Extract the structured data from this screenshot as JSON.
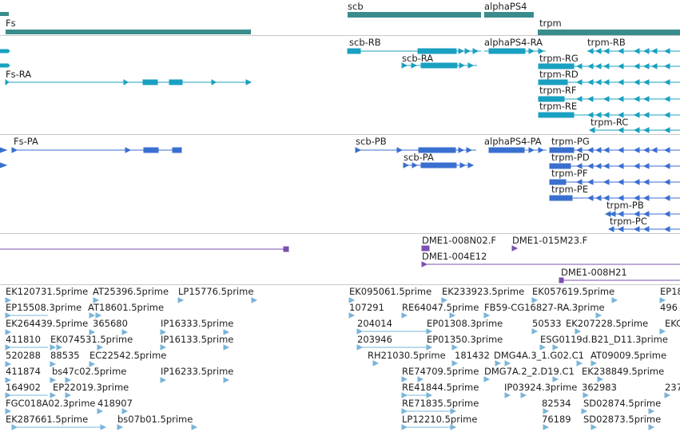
{
  "colors": {
    "gene": "#3a8c8c",
    "transcript": "#1aa0c0",
    "protein": "#3a6fd0",
    "clone": "#7a50b0",
    "est": "#7ab4d8",
    "divider": "#c8c8c8"
  },
  "genes": [
    {
      "name": "Fs",
      "icon": "gene-bar"
    },
    {
      "name": "scb",
      "icon": "gene-arrow-right"
    },
    {
      "name": "alphaPS4",
      "icon": "gene-arrow-right"
    },
    {
      "name": "trpm",
      "icon": "gene-bar"
    }
  ],
  "transcripts": [
    "Fs-RA",
    "scb-RB",
    "scb-RA",
    "alphaPS4-RA",
    "trpm-RB",
    "trpm-RG",
    "trpm-RD",
    "trpm-RF",
    "trpm-RE",
    "trpm-RC"
  ],
  "proteins": [
    "Fs-PA",
    "scb-PB",
    "scb-PA",
    "alphaPS4-PA",
    "trpm-PG",
    "trpm-PD",
    "trpm-PF",
    "trpm-PE",
    "trpm-PB",
    "trpm-PC"
  ],
  "clones": [
    "DME1-008N02.F",
    "DME1-015M23.F",
    "DME1-004E12",
    "DME1-008H21"
  ],
  "ests": [
    "EK120731.5prime",
    "AT25396.5prime",
    "LP15776.5prime",
    "EP15508.3prime",
    "AT18601.5prime",
    "EK264439.5prime",
    "365680",
    "411810",
    "EK074531.5prime",
    "IP16333.5prime",
    "IP16133.5prime",
    "520288",
    "88535",
    "EC22542.5prime",
    "411874",
    "bs47c02.5prime",
    "IP16233.5prime",
    "164902",
    "EP22019.3prime",
    "FGC018A02.3prime",
    "418907",
    "EK287661.5prime",
    "bs07b01.5prime",
    "EK095061.5prime",
    "EK233923.5prime",
    "EK057619.5prime",
    "EP18",
    "107291",
    "RE64047.5prime",
    "FB59-CG16827-RA.3prime",
    "496",
    "204014",
    "EP01308.3prime",
    "50533",
    "EK207228.5prime",
    "EKC",
    "203946",
    "EP01350.3prime",
    "ESG0119d.B21_D11.3prime",
    "RH21030.5prime",
    "181432",
    "DMG4A.3_1.G02.C1",
    "AT09009.5prime",
    "RE74709.5prime",
    "DMG7A.2_2.D19.C1",
    "EK238849.5prime",
    "RE41844.5prime",
    "IP03924.3prime",
    "362983",
    "237",
    "RE71835.5prime",
    "82534",
    "SD02874.5prime",
    "LP12210.5prime",
    "76189",
    "SD02873.5prime"
  ]
}
